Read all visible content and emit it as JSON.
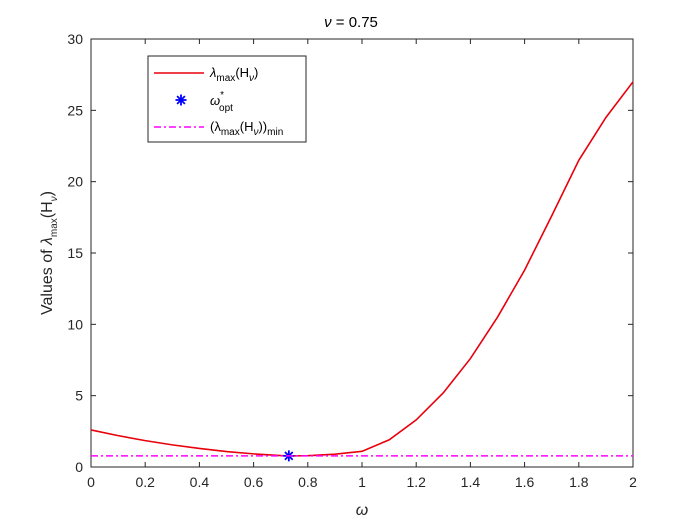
{
  "chart_data": {
    "type": "line",
    "title_var": "ν",
    "title_value": " = 0.75",
    "xlabel": "ω",
    "ylabel_prefix": "Values of ",
    "xlim": [
      0,
      2
    ],
    "ylim": [
      0,
      30
    ],
    "xticks": [
      0,
      0.2,
      0.4,
      0.6,
      0.8,
      1,
      1.2,
      1.4,
      1.6,
      1.8,
      2
    ],
    "xtick_labels": [
      "0",
      "0.2",
      "0.4",
      "0.6",
      "0.8",
      "1",
      "1.2",
      "1.4",
      "1.6",
      "1.8",
      "2"
    ],
    "yticks": [
      0,
      5,
      10,
      15,
      20,
      25,
      30
    ],
    "ytick_labels": [
      "0",
      "5",
      "10",
      "15",
      "20",
      "25",
      "30"
    ],
    "grid": false,
    "legend_position": "top-left",
    "series": [
      {
        "name": "λmax(Hν)",
        "style": "solid",
        "color": "#e8000b",
        "x": [
          0,
          0.1,
          0.2,
          0.3,
          0.4,
          0.5,
          0.6,
          0.7,
          0.75,
          0.8,
          0.9,
          1.0,
          1.1,
          1.2,
          1.3,
          1.4,
          1.5,
          1.6,
          1.7,
          1.8,
          1.9,
          2.0
        ],
        "y": [
          2.6,
          2.2,
          1.85,
          1.55,
          1.3,
          1.08,
          0.92,
          0.8,
          0.78,
          0.79,
          0.9,
          1.1,
          1.9,
          3.3,
          5.2,
          7.6,
          10.5,
          13.8,
          17.6,
          21.5,
          24.5,
          27.0
        ]
      },
      {
        "name": "ω*opt",
        "style": "marker",
        "color": "#0000ff",
        "x": [
          0.73
        ],
        "y": [
          0.78
        ]
      },
      {
        "name": "(λmax(Hν))min",
        "style": "dashdot",
        "color": "#ff00ff",
        "x": [
          0,
          2
        ],
        "y": [
          0.78,
          0.78
        ]
      }
    ],
    "legend": {
      "entry1": {
        "main": "λ",
        "sub1": "max",
        "mid": "(H",
        "sub2": "ν",
        "end": ")"
      },
      "entry2": {
        "main": "ω",
        "sup": "*",
        "sub": "opt"
      },
      "entry3": {
        "open": "(λ",
        "sub1": "max",
        "mid": "(H",
        "sub2": "ν",
        "close": "))",
        "sub3": "min"
      }
    },
    "ylabel_parts": {
      "main": "λ",
      "sub1": "max",
      "mid": "(H",
      "sub2": "ν",
      "end": ")"
    }
  },
  "colors": {
    "curve": "#e8000b",
    "marker": "#0000ff",
    "hline": "#ff00ff",
    "axis": "#262626"
  }
}
